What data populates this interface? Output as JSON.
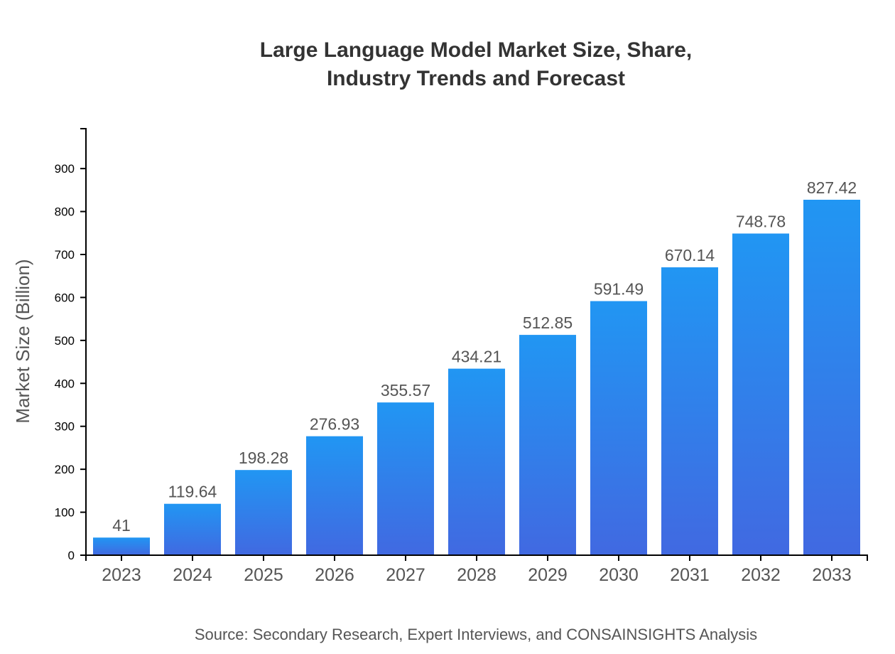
{
  "chart_data": {
    "type": "bar",
    "title": [
      "Large Language Model Market Size, Share,",
      "Industry Trends and Forecast"
    ],
    "xlabel": "",
    "ylabel": "Market Size (Billion)",
    "categories": [
      "2023",
      "2024",
      "2025",
      "2026",
      "2027",
      "2028",
      "2029",
      "2030",
      "2031",
      "2032",
      "2033"
    ],
    "values": [
      41,
      119.64,
      198.28,
      276.93,
      355.57,
      434.21,
      512.85,
      591.49,
      670.14,
      748.78,
      827.42
    ],
    "data_labels": [
      "41",
      "119.64",
      "198.28",
      "276.93",
      "355.57",
      "434.21",
      "512.85",
      "591.49",
      "670.14",
      "748.78",
      "827.42"
    ],
    "ylim": [
      0,
      992.9
    ],
    "yticks": [
      0,
      100,
      200,
      300,
      400,
      500,
      600,
      700,
      800,
      900
    ],
    "grid": false,
    "colors": {
      "bar_top": "#2196F3",
      "bar_bottom": "#4169E1"
    },
    "source": "Source: Secondary Research, Expert Interviews, and CONSAINSIGHTS Analysis"
  }
}
